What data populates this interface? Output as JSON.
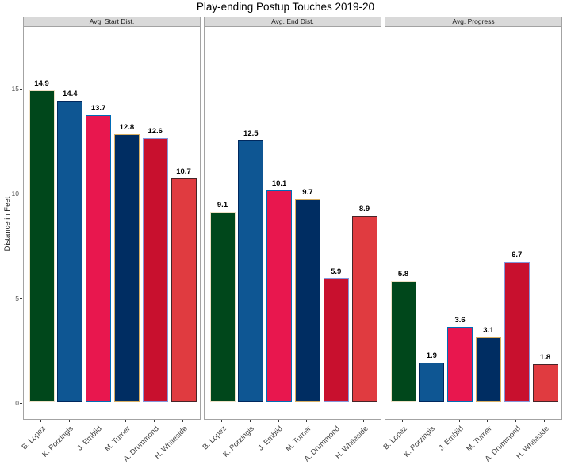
{
  "chart_data": {
    "type": "bar",
    "title": "Play-ending Postup Touches 2019-20",
    "ylabel": "Distance in Feet",
    "xlabel": "",
    "grid": false,
    "legend": "none",
    "y_ticks": [
      0,
      5,
      10,
      15
    ],
    "ylim": [
      0,
      18
    ],
    "categories": [
      "B. Lopez",
      "K. Porzingis",
      "J. Embiid",
      "M. Turner",
      "A. Drummond",
      "H. Whiteside"
    ],
    "facets": [
      {
        "label": "Avg. Start Dist.",
        "values": [
          14.9,
          14.4,
          13.7,
          12.8,
          12.6,
          10.7
        ]
      },
      {
        "label": "Avg. End Dist.",
        "values": [
          9.1,
          12.5,
          10.1,
          9.7,
          5.9,
          8.9
        ]
      },
      {
        "label": "Avg. Progress",
        "values": [
          5.8,
          1.9,
          3.6,
          3.1,
          6.7,
          1.8
        ]
      }
    ],
    "bar_colors": [
      {
        "player": "B. Lopez",
        "fill": "#00471B",
        "stroke": "#EEE1C6"
      },
      {
        "player": "K. Porzingis",
        "fill": "#0E5693",
        "stroke": "#00285E"
      },
      {
        "player": "J. Embiid",
        "fill": "#E8174E",
        "stroke": "#006BB6"
      },
      {
        "player": "M. Turner",
        "fill": "#002D62",
        "stroke": "#D8AF62"
      },
      {
        "player": "A. Drummond",
        "fill": "#C8102E",
        "stroke": "#8496DB"
      },
      {
        "player": "H. Whiteside",
        "fill": "#E03B40",
        "stroke": "#472428"
      }
    ]
  }
}
